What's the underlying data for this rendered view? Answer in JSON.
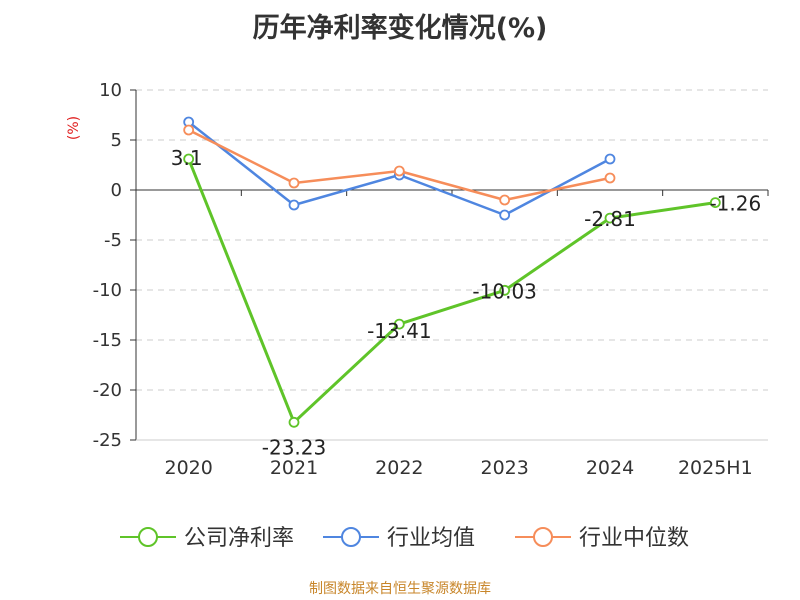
{
  "chart_data": {
    "type": "line",
    "title": "历年净利率变化情况(%)",
    "ylabel": "(%)",
    "categories": [
      "2020",
      "2021",
      "2022",
      "2023",
      "2024",
      "2025H1"
    ],
    "ylim": [
      -25,
      10
    ],
    "yticks": [
      10,
      5,
      0,
      -5,
      -10,
      -15,
      -20,
      -25
    ],
    "grid": true,
    "legend_position": "bottom",
    "series": [
      {
        "name": "公司净利率",
        "color": "#5fc429",
        "values": [
          3.1,
          -23.23,
          -13.41,
          -10.03,
          -2.81,
          -1.26
        ],
        "labels": [
          "3.1",
          "-23.23",
          "-13.41",
          "-10.03",
          "-2.81",
          "-1.26"
        ]
      },
      {
        "name": "行业均值",
        "color": "#4f86e0",
        "values": [
          6.8,
          -1.5,
          1.5,
          -2.5,
          3.1,
          null
        ]
      },
      {
        "name": "行业中位数",
        "color": "#f68d5a",
        "values": [
          6.0,
          0.7,
          1.9,
          -1.0,
          1.2,
          null
        ]
      }
    ]
  },
  "source": "制图数据来自恒生聚源数据库",
  "colors": {
    "title": "#333333",
    "axis": "#333333",
    "grid": "#cccccc",
    "ylabel": "#e02020",
    "source": "#c8862a"
  }
}
